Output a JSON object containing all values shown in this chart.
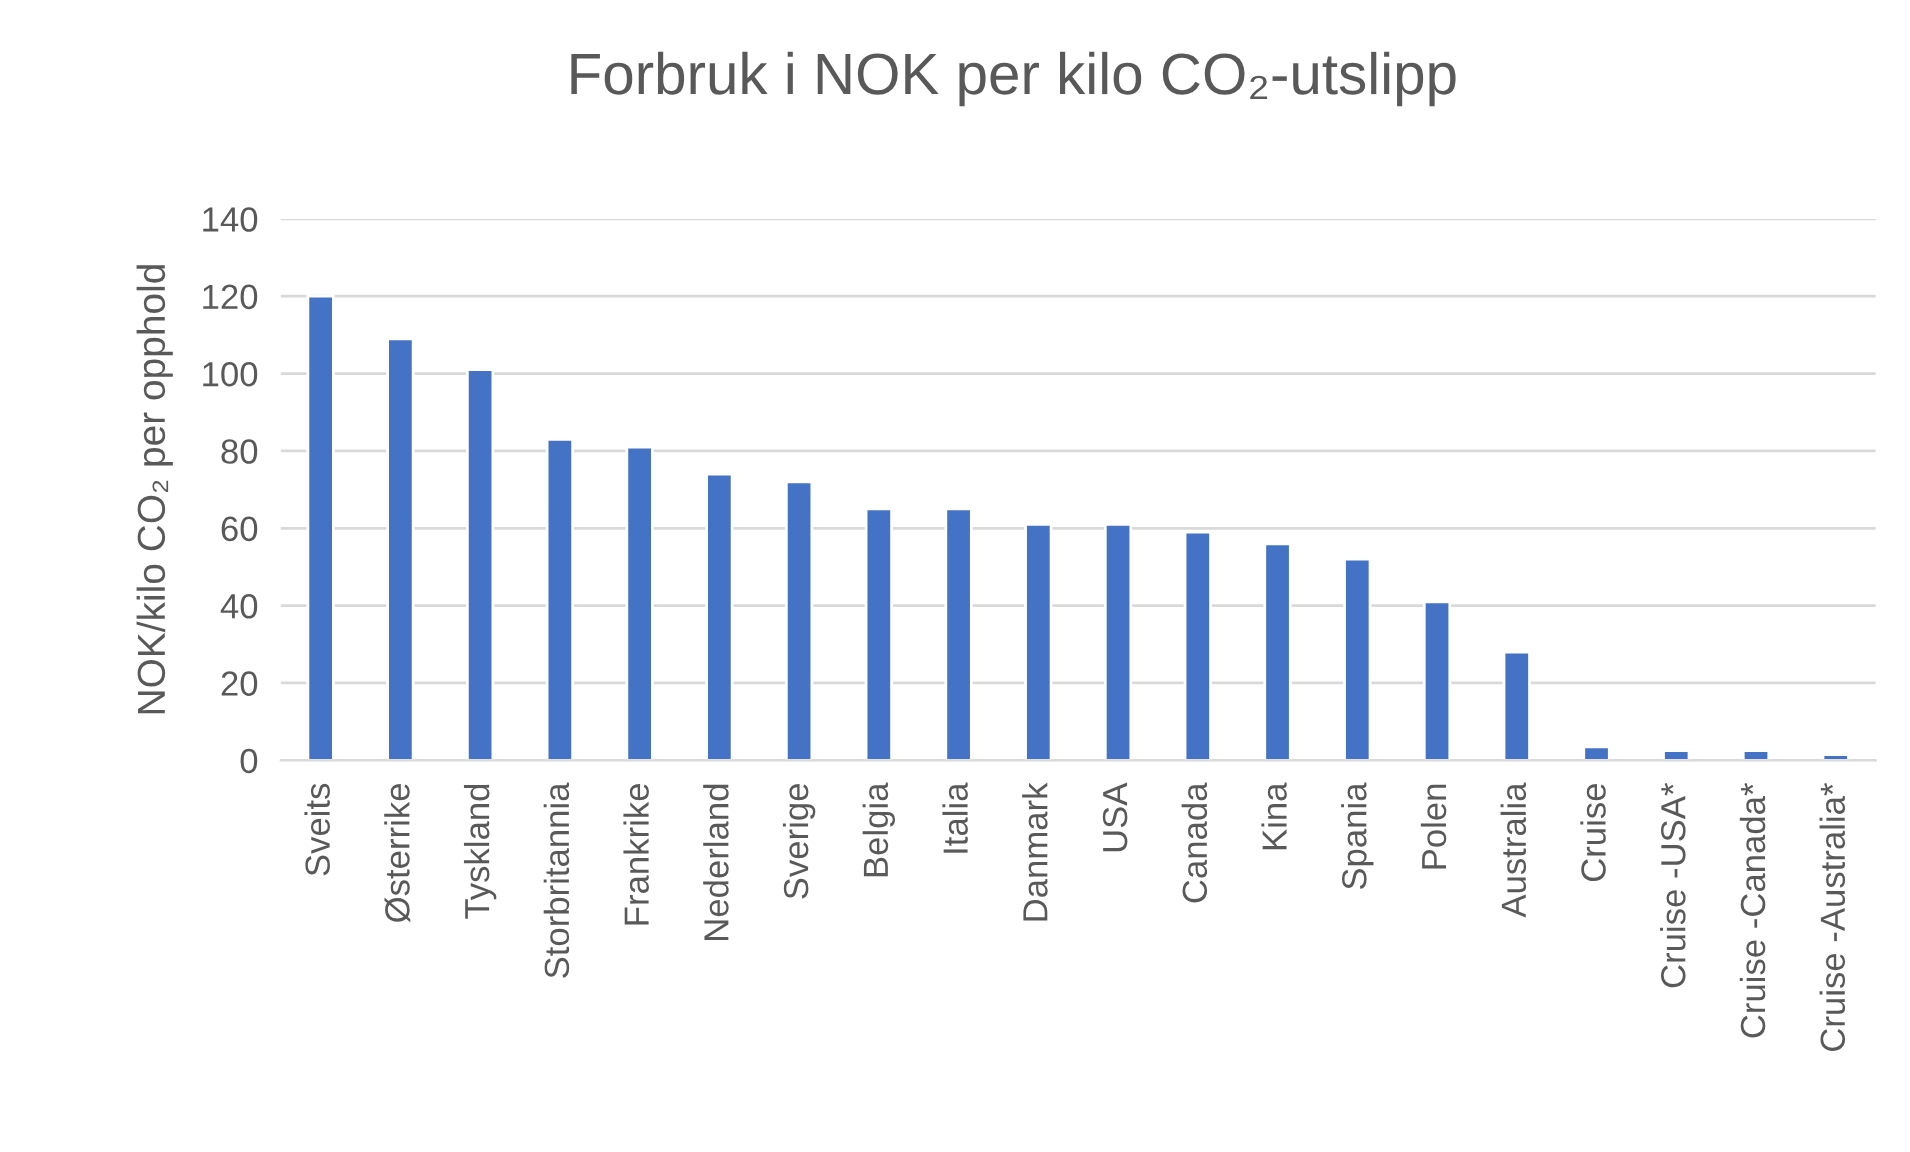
{
  "chart_data": {
    "type": "bar",
    "title": "Forbruk i NOK per kilo CO₂-utslipp",
    "ylabel": "NOK/kilo CO₂ per opphold",
    "categories": [
      "Sveits",
      "Østerrike",
      "Tyskland",
      "Storbritannia",
      "Frankrike",
      "Nederland",
      "Sverige",
      "Belgia",
      "Italia",
      "Danmark",
      "USA",
      "Canada",
      "Kina",
      "Spania",
      "Polen",
      "Australia",
      "Cruise",
      "Cruise -USA*",
      "Cruise -Canada*",
      "Cruise -Australia*"
    ],
    "values": [
      120,
      109,
      101,
      83,
      81,
      74,
      72,
      65,
      65,
      61,
      61,
      59,
      56,
      52,
      41,
      28,
      3.5,
      2.5,
      2.5,
      1.5
    ],
    "color": "#4472c4",
    "ylim": [
      0,
      140
    ],
    "yticks": [
      0,
      20,
      40,
      60,
      80,
      100,
      120,
      140
    ],
    "grid": "y"
  }
}
